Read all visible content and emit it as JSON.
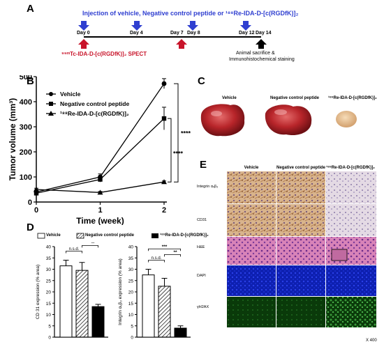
{
  "panels": {
    "a": "A",
    "b": "B",
    "c": "C",
    "d": "D",
    "e": "E"
  },
  "panel_a": {
    "injection_text": "Injection of vehicle, Negative control peptide or ¹⁸⁸Re-IDA-D-[c(RGDfK)]₂",
    "days": [
      "Day 0",
      "Day 4",
      "Day 7",
      "Day 8",
      "Day 12",
      "Day 14"
    ],
    "spect_text": "⁹⁹ᵐTc-IDA-D-[c(RGDfK)]₂ SPECT",
    "end_text_1": "Animal sacrifice &",
    "end_text_2": "Immunohistochemical staining",
    "colors": {
      "injection": "#2f3fd0",
      "spect": "#c8142a",
      "end": "#000000"
    }
  },
  "chart_data": [
    {
      "type": "line",
      "x": [
        0,
        1,
        2
      ],
      "xticks": [
        "0",
        "1",
        "2"
      ],
      "yticks": [
        "0",
        "100",
        "200",
        "300",
        "400",
        "500"
      ],
      "xlabel": "Time (week)",
      "ylabel": "Tumor volume (mm³)",
      "ylim": [
        0,
        500
      ],
      "legend_position": "top-left",
      "series": [
        {
          "name": "Vehicle",
          "marker": "circle",
          "values": [
            40,
            100,
            472
          ],
          "errors": [
            8,
            12,
            20
          ]
        },
        {
          "name": "Negative control peptide",
          "marker": "square",
          "values": [
            35,
            90,
            333
          ],
          "errors": [
            6,
            10,
            45
          ]
        },
        {
          "name": "¹⁸⁸Re-IDA-D-[c(RGDfK)]₂",
          "marker": "triangle",
          "values": [
            50,
            38,
            80
          ],
          "errors": [
            5,
            4,
            4
          ]
        }
      ],
      "significance": [
        "****",
        "****"
      ]
    },
    {
      "type": "bar",
      "categories": [
        "Vehicle",
        "Negative control peptide",
        "¹⁸⁸Re-IDA-D-[c(RGDfK)]₂"
      ],
      "values": [
        31.5,
        29.5,
        13.5
      ],
      "errors": [
        2.5,
        3.5,
        1.0
      ],
      "ylabel": "CD 31 expression (% area)",
      "ylim": [
        0,
        40
      ],
      "yticks": [
        "0",
        "5",
        "10",
        "15",
        "20",
        "25",
        "30",
        "35",
        "40"
      ],
      "significance": [
        "n.s.d.",
        "**",
        "**"
      ]
    },
    {
      "type": "bar",
      "categories": [
        "Vehicle",
        "Negative control peptide",
        "¹⁸⁸Re-IDA-D-[c(RGDfK)]₂"
      ],
      "values": [
        27.5,
        22.5,
        4.0
      ],
      "errors": [
        2.5,
        3.5,
        1.0
      ],
      "ylabel": "Integrin αᵥβ₃ expression (% area)",
      "ylim": [
        0,
        40
      ],
      "yticks": [
        "0",
        "5",
        "10",
        "15",
        "20",
        "25",
        "30",
        "35",
        "40"
      ],
      "significance": [
        "n.s.d.",
        "**",
        "***"
      ]
    }
  ],
  "legend_d": [
    "Vehicle",
    "Negative control peptide",
    "¹⁸⁸Re-IDA-D-[c(RGDfK)]₂"
  ],
  "panel_c": {
    "labels": [
      "Vehicle",
      "Negative control peptide",
      "¹⁸⁸Re-IDA-D-[c(RGDfK)]₂"
    ]
  },
  "panel_e": {
    "columns": [
      "Vehicle",
      "Negative control peptide",
      "¹⁸⁸Re-IDA-D-[c(RGDfK)]₂"
    ],
    "rows": [
      "Integrin αᵥβ₃",
      "CD31",
      "H&E",
      "DAPI",
      "γH2AX"
    ],
    "magnification": "X 400"
  }
}
